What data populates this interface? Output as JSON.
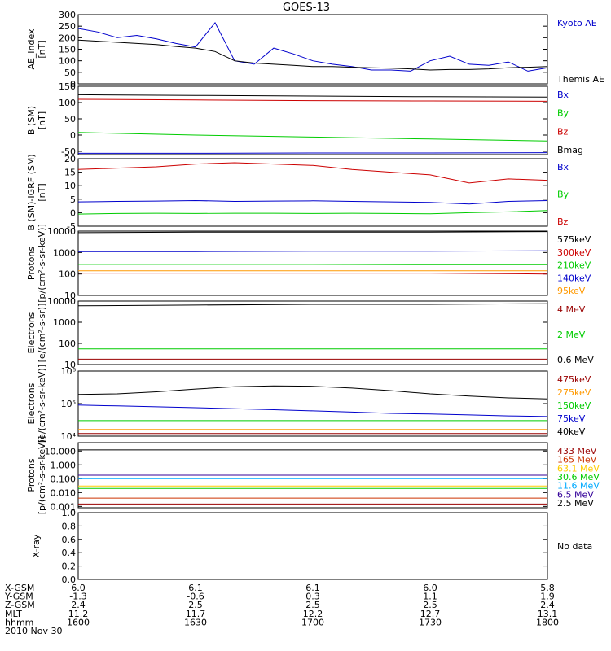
{
  "title": "GOES-13",
  "chart_data": [
    {
      "id": "ae",
      "type": "line",
      "ylabel": [
        "AE_index",
        "[nT]"
      ],
      "yscale": "linear",
      "ylim": [
        0,
        300
      ],
      "yticks": [
        0,
        50,
        100,
        150,
        200,
        250,
        300
      ],
      "x": [
        1600,
        1605,
        1610,
        1615,
        1620,
        1625,
        1630,
        1635,
        1640,
        1645,
        1650,
        1655,
        1700,
        1705,
        1710,
        1715,
        1720,
        1725,
        1730,
        1735,
        1740,
        1745,
        1750,
        1755,
        1800
      ],
      "series": [
        {
          "name": "Kyoto AE",
          "color": "#0000cc",
          "values": [
            240,
            225,
            200,
            210,
            195,
            175,
            160,
            265,
            100,
            85,
            155,
            130,
            100,
            85,
            75,
            60,
            60,
            55,
            100,
            120,
            85,
            80,
            95,
            55,
            70
          ]
        },
        {
          "name": "Themis AE",
          "color": "#000000",
          "values": [
            190,
            185,
            180,
            175,
            170,
            162,
            155,
            140,
            100,
            90,
            85,
            80,
            75,
            75,
            72,
            70,
            68,
            65,
            60,
            62,
            62,
            65,
            70,
            72,
            75
          ]
        }
      ]
    },
    {
      "id": "bsm",
      "type": "line",
      "ylabel": [
        "B (SM)",
        "[nT]"
      ],
      "yscale": "linear",
      "ylim": [
        -60,
        150
      ],
      "yticks": [
        -50,
        0,
        50,
        100,
        150
      ],
      "x": [
        1600,
        1630,
        1700,
        1730,
        1800
      ],
      "series": [
        {
          "name": "Bx",
          "color": "#0000cc",
          "values": [
            -56,
            -56,
            -55,
            -55,
            -54
          ]
        },
        {
          "name": "By",
          "color": "#00cc00",
          "values": [
            8,
            0,
            -6,
            -12,
            -18
          ]
        },
        {
          "name": "Bz",
          "color": "#cc0000",
          "values": [
            110,
            108,
            106,
            105,
            104
          ]
        },
        {
          "name": "Bmag",
          "color": "#000000",
          "values": [
            124,
            122,
            120,
            118,
            117
          ]
        }
      ]
    },
    {
      "id": "bigrf",
      "type": "line",
      "ylabel": [
        "B (SM)-IGRF (SM)",
        "[nT]"
      ],
      "yscale": "linear",
      "ylim": [
        -5,
        20
      ],
      "yticks": [
        -5,
        0,
        5,
        10,
        15,
        20
      ],
      "x": [
        1600,
        1610,
        1620,
        1630,
        1640,
        1650,
        1700,
        1710,
        1720,
        1730,
        1740,
        1750,
        1800
      ],
      "series": [
        {
          "name": "Bx",
          "color": "#0000cc",
          "values": [
            4,
            4.2,
            4.3,
            4.5,
            4.2,
            4.3,
            4.4,
            4.2,
            4.0,
            3.8,
            3.2,
            4.2,
            4.5
          ]
        },
        {
          "name": "By",
          "color": "#00cc00",
          "values": [
            -0.5,
            -0.3,
            -0.2,
            -0.3,
            -0.2,
            -0.2,
            -0.3,
            -0.2,
            -0.3,
            -0.4,
            0.0,
            0.3,
            0.8
          ]
        },
        {
          "name": "Bz",
          "color": "#cc0000",
          "values": [
            16,
            16.5,
            17,
            18,
            18.5,
            18,
            17.5,
            16,
            15,
            14,
            11,
            12.5,
            12
          ]
        }
      ]
    },
    {
      "id": "protons1",
      "type": "line",
      "ylabel": [
        "Protons",
        "[p/(cm²-s-sr-keV)]"
      ],
      "yscale": "log",
      "ylim": [
        10,
        10000
      ],
      "yticks": [
        10,
        100,
        1000,
        10000
      ],
      "ytick_labels": [
        "10",
        "100",
        "1000",
        "10000"
      ],
      "x": [
        1600,
        1630,
        1700,
        1730,
        1800
      ],
      "series": [
        {
          "name": "575keV",
          "color": "#000000",
          "values": [
            8500,
            9000,
            9000,
            9000,
            9500
          ]
        },
        {
          "name": "300keV",
          "color": "#cc0000",
          "values": [
            110,
            110,
            110,
            110,
            100
          ]
        },
        {
          "name": "210keV",
          "color": "#00cc00",
          "values": [
            280,
            280,
            280,
            270,
            270
          ]
        },
        {
          "name": "140keV",
          "color": "#0000cc",
          "values": [
            1100,
            1100,
            1150,
            1150,
            1200
          ]
        },
        {
          "name": "95keV",
          "color": "#ff9900",
          "values": [
            140,
            140,
            140,
            140,
            140
          ]
        }
      ]
    },
    {
      "id": "electrons1",
      "type": "line",
      "ylabel": [
        "Electrons",
        "[e/(cm²-s-sr)]"
      ],
      "yscale": "log",
      "ylim": [
        10,
        10000
      ],
      "yticks": [
        10,
        100,
        1000,
        10000
      ],
      "ytick_labels": [
        "10",
        "100",
        "1000",
        "10000"
      ],
      "x": [
        1600,
        1630,
        1700,
        1730,
        1800
      ],
      "series": [
        {
          "name": "4 MeV",
          "color": "#990000",
          "values": [
            18,
            18,
            18,
            18,
            18
          ]
        },
        {
          "name": "2 MeV",
          "color": "#00cc00",
          "values": [
            55,
            55,
            55,
            55,
            55
          ]
        },
        {
          "name": "0.6 MeV",
          "color": "#000000",
          "values": [
            6000,
            6500,
            7000,
            7000,
            7500
          ]
        }
      ]
    },
    {
      "id": "electrons2",
      "type": "line",
      "ylabel": [
        "Electrons",
        "[e/(cm²-s-sr-keV)]"
      ],
      "yscale": "log",
      "ylim": [
        10000,
        1000000
      ],
      "yticks": [
        10000,
        100000,
        1000000
      ],
      "ytick_labels": [
        "10⁴",
        "10⁵",
        "10⁶"
      ],
      "x": [
        1600,
        1610,
        1620,
        1630,
        1640,
        1650,
        1700,
        1710,
        1720,
        1730,
        1740,
        1750,
        1800
      ],
      "series": [
        {
          "name": "475keV",
          "color": "#990000",
          "values": [
            12000,
            12000,
            12000,
            12000,
            12000,
            12000,
            12000,
            12000,
            12000,
            12000,
            12000,
            12000,
            12000
          ]
        },
        {
          "name": "275keV",
          "color": "#ff9900",
          "values": [
            16000,
            16000,
            16000,
            16000,
            16000,
            16000,
            16000,
            16000,
            16000,
            16000,
            16000,
            16000,
            16000
          ]
        },
        {
          "name": "150keV",
          "color": "#00cc00",
          "values": [
            30000,
            30000,
            30000,
            30000,
            30000,
            30000,
            30000,
            30000,
            30000,
            30000,
            30000,
            30000,
            30000
          ]
        },
        {
          "name": "75keV",
          "color": "#0000cc",
          "values": [
            90000,
            85000,
            80000,
            75000,
            70000,
            65000,
            60000,
            55000,
            50000,
            48000,
            45000,
            42000,
            40000
          ]
        },
        {
          "name": "40keV",
          "color": "#000000",
          "values": [
            190000,
            200000,
            230000,
            280000,
            330000,
            350000,
            340000,
            300000,
            250000,
            200000,
            170000,
            150000,
            140000
          ]
        }
      ]
    },
    {
      "id": "protons2",
      "type": "line",
      "ylabel": [
        "Protons",
        "[p/(cm²-s-sr-keV)]"
      ],
      "yscale": "log",
      "ylim": [
        0.0008,
        40
      ],
      "yticks": [
        0.001,
        0.01,
        0.1,
        1,
        10
      ],
      "ytick_labels": [
        "0.001",
        "0.010",
        "0.100",
        "1.000",
        "10.000"
      ],
      "x": [
        1600,
        1630,
        1700,
        1730,
        1800
      ],
      "series": [
        {
          "name": "433 MeV",
          "color": "#990000",
          "values": [
            0.0015,
            0.0015,
            0.0015,
            0.0015,
            0.0015
          ]
        },
        {
          "name": "165 MeV",
          "color": "#cc3300",
          "values": [
            0.004,
            0.004,
            0.004,
            0.004,
            0.004
          ]
        },
        {
          "name": "63.1 MeV",
          "color": "#ffcc00",
          "values": [
            0.03,
            0.03,
            0.03,
            0.03,
            0.03
          ]
        },
        {
          "name": "30.6 MeV",
          "color": "#00cc00",
          "values": [
            0.02,
            0.02,
            0.02,
            0.02,
            0.02
          ]
        },
        {
          "name": "11.6 MeV",
          "color": "#00aaff",
          "values": [
            0.1,
            0.1,
            0.1,
            0.1,
            0.1
          ]
        },
        {
          "name": "6.5 MeV",
          "color": "#330099",
          "values": [
            0.18,
            0.18,
            0.18,
            0.18,
            0.18
          ]
        },
        {
          "name": "2.5 MeV",
          "color": "#000000",
          "values": [
            12,
            12,
            12,
            12,
            12
          ]
        }
      ]
    },
    {
      "id": "xray",
      "type": "line",
      "ylabel": [
        "X-ray"
      ],
      "yscale": "linear",
      "ylim": [
        0,
        1
      ],
      "yticks": [
        0,
        0.2,
        0.4,
        0.6,
        0.8,
        1.0
      ],
      "ytick_labels": [
        "0.0",
        "0.2",
        "0.4",
        "0.6",
        "0.8",
        "1.0"
      ],
      "series": [],
      "legend_text": [
        "No data"
      ]
    }
  ],
  "xaxis": {
    "rows": [
      "X-GSM",
      "Y-GSM",
      "Z-GSM",
      "MLT",
      "hhmm"
    ],
    "date": "2010 Nov 30",
    "ticks": [
      {
        "t": 1600,
        "vals": [
          "6.0",
          "-1.3",
          "2.4",
          "11.2",
          "1600"
        ]
      },
      {
        "t": 1630,
        "vals": [
          "6.1",
          "-0.6",
          "2.5",
          "11.7",
          "1630"
        ]
      },
      {
        "t": 1700,
        "vals": [
          "6.1",
          "0.3",
          "2.5",
          "12.2",
          "1700"
        ]
      },
      {
        "t": 1730,
        "vals": [
          "6.0",
          "1.1",
          "2.5",
          "12.7",
          "1730"
        ]
      },
      {
        "t": 1800,
        "vals": [
          "5.8",
          "1.9",
          "2.4",
          "13.1",
          "1800"
        ]
      }
    ]
  }
}
